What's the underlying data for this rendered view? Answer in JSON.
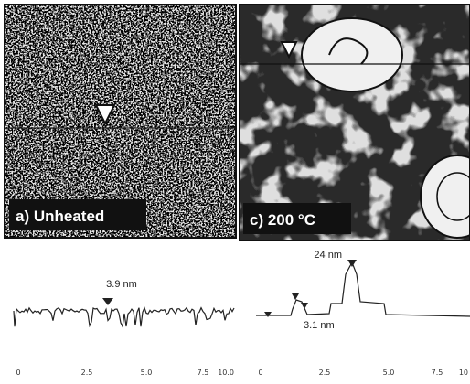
{
  "panels": [
    {
      "label": "a) Unheated"
    },
    {
      "label": "c) 200 °C"
    }
  ],
  "profiles": [
    {
      "annotations": [
        "3.9 nm"
      ],
      "x_ticks": [
        "0",
        "2.5",
        "5.0",
        "7.5",
        "10.0"
      ]
    },
    {
      "annotations": [
        "24 nm",
        "3.1 nm"
      ],
      "x_ticks": [
        "0",
        "2.5",
        "5.0",
        "7.5",
        "10"
      ]
    }
  ]
}
